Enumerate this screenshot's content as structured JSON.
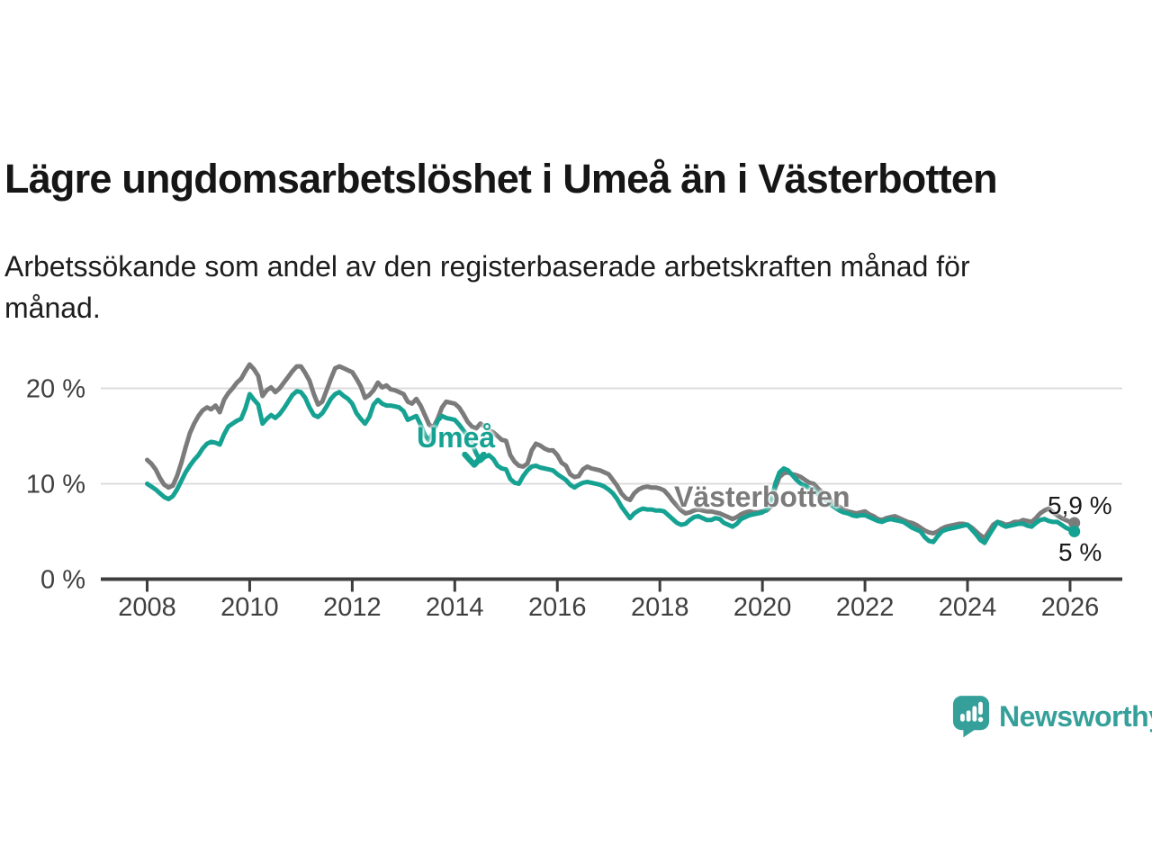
{
  "title": "Lägre ungdomsarbetslöshet i Umeå än i Västerbotten",
  "subtitle": "Arbetssökande som andel av den registerbaserade arbetskraften månad för månad.",
  "annotations": {
    "umea_label": "Umeå",
    "vasterbotten_label": "Västerbotten",
    "end_value_vasterbotten": "5,9 %",
    "end_value_umea": "5 %"
  },
  "logo": {
    "text": "Newsworthy",
    "icon": "speech-bubble-bar-chart-exclamation"
  },
  "colors": {
    "umea_line": "#16a292",
    "vasterbotten_line": "#7b7b7b",
    "logo_teal": "#35a09a",
    "axis": "#3d3d3d",
    "grid": "#dcdcdc",
    "text": "#1a1a1a"
  },
  "chart_data": {
    "type": "line",
    "unit": "%",
    "frequency": "monthly",
    "x_start": {
      "year": 2008,
      "month": 1
    },
    "x_end": {
      "year": 2026,
      "month": 2
    },
    "x_tick_years": [
      2008,
      2010,
      2012,
      2014,
      2016,
      2018,
      2020,
      2022,
      2024,
      2026
    ],
    "y_ticks": [
      {
        "value": 0,
        "label": "0 %"
      },
      {
        "value": 10,
        "label": "10 %"
      },
      {
        "value": 20,
        "label": "20 %"
      }
    ],
    "y_gridlines": [
      10,
      20
    ],
    "ylim": [
      0,
      24
    ],
    "legend_position": "inline-labels",
    "grid": true,
    "series": [
      {
        "name": "Västerbotten",
        "color": "#7b7b7b",
        "end_label": "5,9 %",
        "values": [
          12.5,
          12.1,
          11.5,
          10.6,
          9.9,
          9.6,
          9.8,
          10.8,
          12.2,
          13.8,
          15.3,
          16.3,
          17.1,
          17.7,
          18.0,
          17.8,
          18.2,
          17.5,
          18.8,
          19.5,
          20.0,
          20.6,
          21.0,
          21.8,
          22.5,
          22.0,
          21.3,
          19.2,
          19.8,
          20.1,
          19.6,
          20.0,
          20.6,
          21.2,
          21.8,
          22.3,
          22.3,
          21.6,
          20.8,
          19.4,
          18.3,
          18.6,
          19.8,
          21.0,
          22.1,
          22.3,
          22.1,
          21.9,
          21.7,
          21.0,
          20.2,
          19.0,
          19.3,
          19.8,
          20.6,
          20.1,
          20.3,
          19.9,
          19.8,
          19.6,
          19.4,
          18.6,
          18.4,
          18.9,
          18.2,
          17.2,
          16.2,
          15.9,
          16.8,
          18.0,
          18.6,
          18.5,
          18.4,
          18.0,
          17.3,
          16.5,
          16.0,
          15.8,
          16.3,
          16.0,
          15.6,
          15.4,
          15.0,
          14.6,
          14.5,
          13.0,
          12.3,
          11.9,
          11.8,
          12.1,
          13.5,
          14.2,
          14.0,
          13.7,
          13.5,
          13.5,
          13.0,
          12.2,
          11.9,
          11.0,
          10.7,
          10.8,
          11.5,
          11.8,
          11.6,
          11.5,
          11.4,
          11.2,
          11.0,
          10.4,
          9.8,
          9.0,
          8.5,
          8.3,
          9.0,
          9.4,
          9.6,
          9.7,
          9.6,
          9.6,
          9.5,
          9.3,
          8.8,
          8.2,
          7.7,
          7.2,
          6.9,
          7.0,
          7.2,
          7.3,
          7.2,
          7.1,
          7.1,
          7.0,
          6.9,
          6.7,
          6.5,
          6.3,
          6.5,
          6.8,
          7.0,
          7.1,
          7.0,
          7.0,
          7.1,
          7.2,
          7.6,
          9.6,
          10.7,
          11.1,
          11.2,
          11.0,
          10.9,
          10.7,
          10.4,
          10.1,
          10.0,
          9.5,
          9.1,
          8.7,
          8.3,
          7.9,
          7.6,
          7.3,
          7.1,
          7.0,
          6.9,
          7.0,
          7.1,
          6.8,
          6.6,
          6.3,
          6.2,
          6.4,
          6.5,
          6.6,
          6.4,
          6.2,
          6.0,
          5.9,
          5.7,
          5.4,
          5.1,
          4.9,
          4.8,
          5.0,
          5.3,
          5.5,
          5.6,
          5.7,
          5.8,
          5.8,
          5.7,
          5.4,
          5.0,
          4.6,
          4.3,
          5.0,
          5.7,
          6.0,
          5.9,
          5.7,
          5.8,
          6.0,
          6.0,
          6.2,
          6.1,
          6.0,
          6.4,
          6.9,
          7.2,
          7.4,
          7.0,
          6.7,
          6.4,
          6.2,
          6.0,
          5.9
        ]
      },
      {
        "name": "Umeå",
        "color": "#16a292",
        "end_label": "5 %",
        "values": [
          10.0,
          9.7,
          9.4,
          9.0,
          8.6,
          8.4,
          8.7,
          9.4,
          10.3,
          11.2,
          11.9,
          12.5,
          13.0,
          13.7,
          14.2,
          14.4,
          14.3,
          14.1,
          15.2,
          16.0,
          16.3,
          16.6,
          16.8,
          17.9,
          19.4,
          18.8,
          18.3,
          16.3,
          16.8,
          17.2,
          16.9,
          17.3,
          17.9,
          18.6,
          19.3,
          19.7,
          19.6,
          19.0,
          18.0,
          17.2,
          17.0,
          17.4,
          18.1,
          18.9,
          19.4,
          19.6,
          19.2,
          18.9,
          18.4,
          17.4,
          16.8,
          16.3,
          17.0,
          18.3,
          18.8,
          18.4,
          18.2,
          18.2,
          18.1,
          18.0,
          17.6,
          16.7,
          16.9,
          17.1,
          16.2,
          15.1,
          14.5,
          15.5,
          16.6,
          17.1,
          16.9,
          16.8,
          16.7,
          16.2,
          15.6,
          15.0,
          14.2,
          13.2,
          12.4,
          12.8,
          13.0,
          12.6,
          11.9,
          11.6,
          11.5,
          10.5,
          10.1,
          10.0,
          10.8,
          11.4,
          11.8,
          11.9,
          11.7,
          11.6,
          11.5,
          11.4,
          11.0,
          10.7,
          10.4,
          9.9,
          9.6,
          9.9,
          10.1,
          10.2,
          10.1,
          10.0,
          9.9,
          9.7,
          9.4,
          9.0,
          8.4,
          7.6,
          7.0,
          6.4,
          6.9,
          7.2,
          7.4,
          7.3,
          7.3,
          7.2,
          7.2,
          7.1,
          6.7,
          6.3,
          5.9,
          5.7,
          5.8,
          6.2,
          6.5,
          6.6,
          6.4,
          6.2,
          6.2,
          6.4,
          6.3,
          5.9,
          5.7,
          5.5,
          5.8,
          6.3,
          6.5,
          6.7,
          6.8,
          6.9,
          7.0,
          7.3,
          8.0,
          10.0,
          11.2,
          11.6,
          11.4,
          10.9,
          10.4,
          10.0,
          9.8,
          9.5,
          9.4,
          8.9,
          8.5,
          8.1,
          7.8,
          7.5,
          7.2,
          7.0,
          6.9,
          6.7,
          6.6,
          6.7,
          6.7,
          6.5,
          6.3,
          6.1,
          6.0,
          6.2,
          6.3,
          6.2,
          6.1,
          6.0,
          5.7,
          5.4,
          5.2,
          5.0,
          4.4,
          4.0,
          3.9,
          4.5,
          5.0,
          5.2,
          5.3,
          5.4,
          5.5,
          5.6,
          5.7,
          5.2,
          4.7,
          4.1,
          3.8,
          4.6,
          5.3,
          6.0,
          5.7,
          5.5,
          5.6,
          5.7,
          5.8,
          5.8,
          5.6,
          5.5,
          5.9,
          6.2,
          6.3,
          6.1,
          6.0,
          6.0,
          5.7,
          5.4,
          5.2,
          5.0
        ]
      }
    ]
  }
}
